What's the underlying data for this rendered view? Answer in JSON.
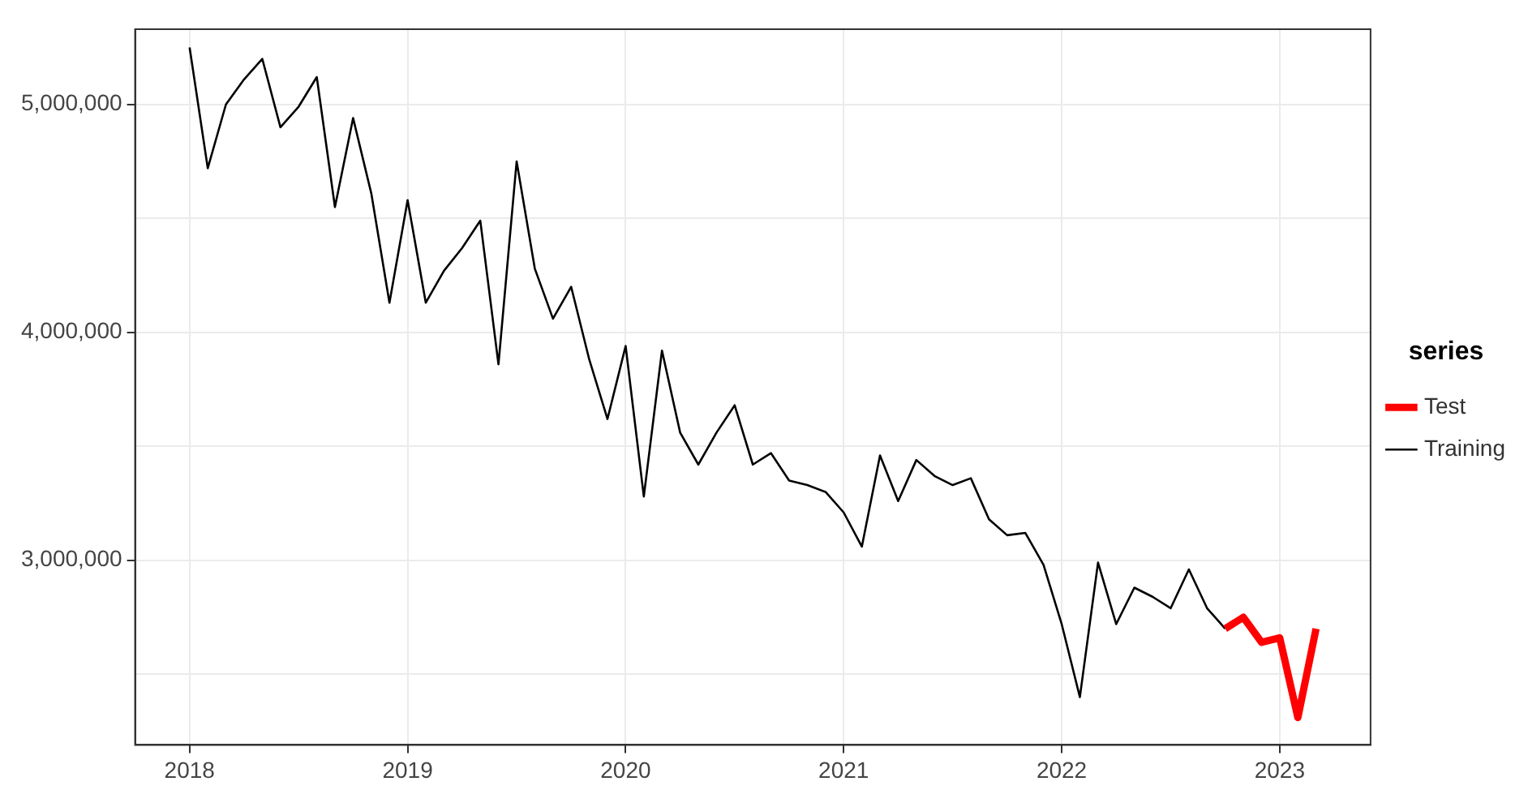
{
  "chart_data": {
    "type": "line",
    "legend_title": "series",
    "legend": "right",
    "grid": true,
    "marker": "none",
    "line_style": "solid",
    "xlim": [
      "2017-10",
      "2023-06"
    ],
    "xticks": [
      "2018",
      "2019",
      "2020",
      "2021",
      "2022",
      "2023"
    ],
    "ylim": [
      2190000,
      5330000
    ],
    "yticks": [
      {
        "value": 2500000,
        "label": null
      },
      {
        "value": 3000000,
        "label": "3,000,000"
      },
      {
        "value": 3500000,
        "label": null
      },
      {
        "value": 4000000,
        "label": "4,000,000"
      },
      {
        "value": 4500000,
        "label": null
      },
      {
        "value": 5000000,
        "label": "5,000,000"
      }
    ],
    "series": [
      {
        "name": "Test",
        "color": "#ff0000",
        "x": [
          "2022-10",
          "2022-11",
          "2022-12",
          "2023-01",
          "2023-02",
          "2023-03"
        ],
        "values": [
          2700000,
          2750000,
          2640000,
          2660000,
          2310000,
          2700000
        ]
      },
      {
        "name": "Training",
        "color": "#000000",
        "x": [
          "2018-01",
          "2018-02",
          "2018-03",
          "2018-04",
          "2018-05",
          "2018-06",
          "2018-07",
          "2018-08",
          "2018-09",
          "2018-10",
          "2018-11",
          "2018-12",
          "2019-01",
          "2019-02",
          "2019-03",
          "2019-04",
          "2019-05",
          "2019-06",
          "2019-07",
          "2019-08",
          "2019-09",
          "2019-10",
          "2019-11",
          "2019-12",
          "2020-01",
          "2020-02",
          "2020-03",
          "2020-04",
          "2020-05",
          "2020-06",
          "2020-07",
          "2020-08",
          "2020-09",
          "2020-10",
          "2020-11",
          "2020-12",
          "2021-01",
          "2021-02",
          "2021-03",
          "2021-04",
          "2021-05",
          "2021-06",
          "2021-07",
          "2021-08",
          "2021-09",
          "2021-10",
          "2021-11",
          "2021-12",
          "2022-01",
          "2022-02",
          "2022-03",
          "2022-04",
          "2022-05",
          "2022-06",
          "2022-07",
          "2022-08",
          "2022-09",
          "2022-10"
        ],
        "values": [
          5250000,
          4720000,
          5000000,
          5110000,
          5200000,
          4900000,
          4990000,
          5120000,
          4550000,
          4940000,
          4610000,
          4130000,
          4580000,
          4130000,
          4270000,
          4370000,
          4490000,
          3860000,
          4750000,
          4280000,
          4060000,
          4200000,
          3880000,
          3620000,
          3940000,
          3280000,
          3920000,
          3560000,
          3420000,
          3560000,
          3680000,
          3420000,
          3470000,
          3350000,
          3330000,
          3300000,
          3210000,
          3060000,
          3460000,
          3260000,
          3440000,
          3370000,
          3330000,
          3360000,
          3180000,
          3110000,
          3120000,
          2980000,
          2720000,
          2400000,
          2990000,
          2720000,
          2880000,
          2840000,
          2790000,
          2960000,
          2790000,
          2700000
        ]
      }
    ]
  }
}
